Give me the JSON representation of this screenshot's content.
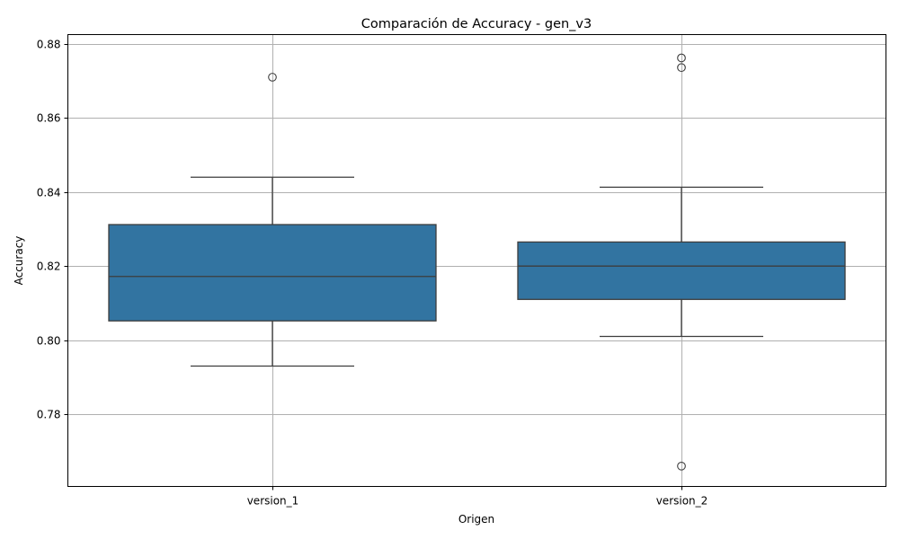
{
  "chart_data": {
    "type": "box",
    "title": "Comparación de Accuracy - gen_v3",
    "xlabel": "Origen",
    "ylabel": "Accuracy",
    "categories": [
      "version_1",
      "version_2"
    ],
    "ylim": [
      0.7605,
      0.8825
    ],
    "yticks": [
      "0.78",
      "0.80",
      "0.82",
      "0.84",
      "0.86",
      "0.88"
    ],
    "grid": true,
    "box_color": "#3274a1",
    "line_color": "#3d3d3d",
    "boxes": [
      {
        "category": "version_1",
        "whisker_low": 0.793,
        "q1": 0.8052,
        "median": 0.8172,
        "q3": 0.8312,
        "whisker_high": 0.844,
        "outliers": [
          0.871
        ]
      },
      {
        "category": "version_2",
        "whisker_low": 0.801,
        "q1": 0.811,
        "median": 0.82,
        "q3": 0.8265,
        "whisker_high": 0.8413,
        "outliers": [
          0.8762,
          0.8736,
          0.766
        ]
      }
    ]
  }
}
